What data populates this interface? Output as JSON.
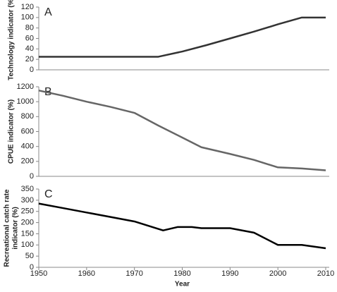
{
  "chart_data": [
    {
      "type": "line",
      "annotation": "A",
      "y_label": "Technology indicator (%)",
      "x": [
        1950,
        1975,
        1980,
        1985,
        1990,
        1995,
        2000,
        2005,
        2010
      ],
      "values": [
        25,
        25,
        35,
        47,
        60,
        73,
        87,
        100,
        100
      ],
      "color": "#333333",
      "xlim": [
        1950,
        2010
      ],
      "ylim": [
        0,
        120
      ],
      "yticks": [
        0,
        20,
        40,
        60,
        80,
        100,
        120
      ]
    },
    {
      "type": "line",
      "annotation": "B",
      "y_label": "CPUE indicator (%)",
      "x": [
        1950,
        1955,
        1960,
        1965,
        1970,
        1975,
        1980,
        1984,
        1990,
        1995,
        2000,
        2005,
        2010
      ],
      "values": [
        1150,
        1080,
        1000,
        930,
        850,
        680,
        520,
        390,
        300,
        220,
        120,
        105,
        80
      ],
      "color": "#666666",
      "xlim": [
        1950,
        2010
      ],
      "ylim": [
        0,
        1200
      ],
      "yticks": [
        0,
        200,
        400,
        600,
        800,
        1000,
        1200
      ]
    },
    {
      "type": "line",
      "annotation": "C",
      "y_label": [
        "Recreational catch rate",
        "indicator (%)"
      ],
      "x_label": "Year",
      "x": [
        1950,
        1955,
        1960,
        1965,
        1970,
        1973,
        1976,
        1979,
        1982,
        1984,
        1990,
        1995,
        2000,
        2005,
        2010
      ],
      "values": [
        285,
        265,
        245,
        225,
        205,
        185,
        165,
        180,
        180,
        175,
        175,
        155,
        100,
        100,
        85
      ],
      "color": "#000000",
      "xlim": [
        1950,
        2010
      ],
      "ylim": [
        0,
        350
      ],
      "yticks": [
        0,
        50,
        100,
        150,
        200,
        250,
        300,
        350
      ],
      "xticks": [
        1950,
        1960,
        1970,
        1980,
        1990,
        2000,
        2010
      ]
    }
  ]
}
